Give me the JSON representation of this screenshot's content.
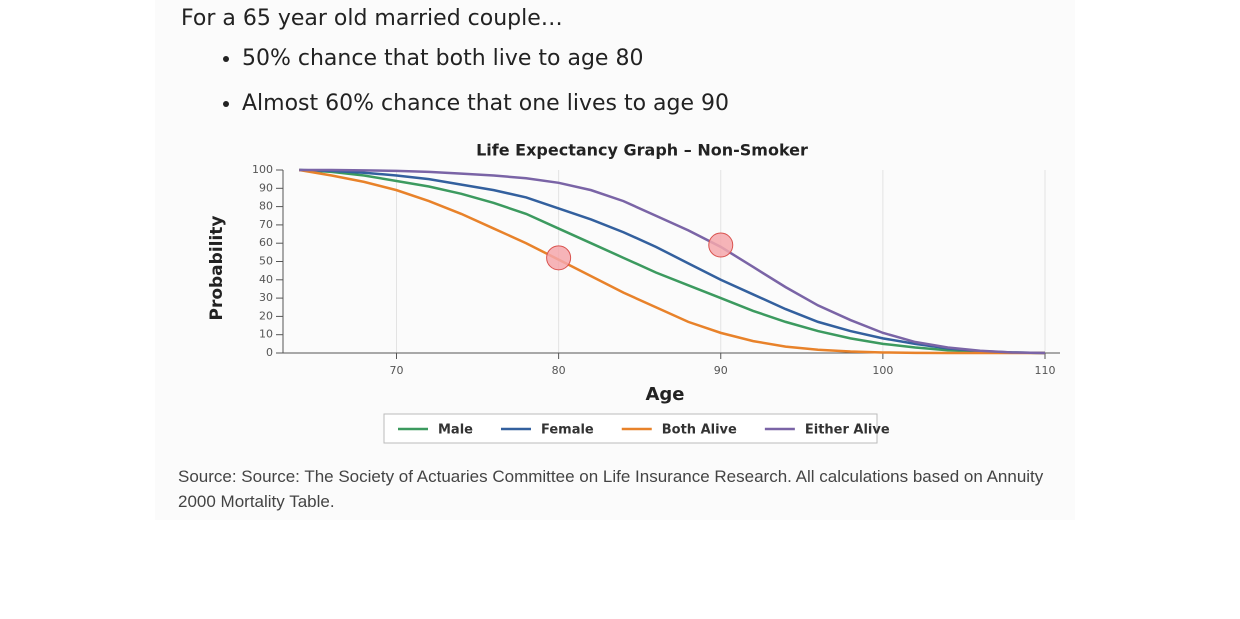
{
  "header": {
    "title": "For a 65 year old married couple…",
    "bullets": [
      "50% chance that both live to age 80",
      "Almost 60% chance that one lives to age 90"
    ]
  },
  "chart_data": {
    "type": "line",
    "title": "Life Expectancy Graph – Non-Smoker",
    "x_label": "Age",
    "y_label": "Probability",
    "x": [
      64,
      66,
      68,
      70,
      72,
      74,
      76,
      78,
      80,
      82,
      84,
      86,
      88,
      90,
      92,
      94,
      96,
      98,
      100,
      102,
      104,
      106,
      108,
      110
    ],
    "series": [
      {
        "name": "Male",
        "color": "#3c9a5f",
        "values": [
          100,
          99,
          97,
          94,
          91,
          87,
          82,
          76,
          68,
          60,
          52,
          44,
          37,
          30,
          23,
          17,
          12,
          8,
          5,
          3,
          1.5,
          0.7,
          0.2,
          0
        ]
      },
      {
        "name": "Female",
        "color": "#33609e",
        "values": [
          100,
          99.5,
          98.5,
          97,
          95,
          92,
          89,
          85,
          79,
          73,
          66,
          58,
          49,
          40,
          32,
          24,
          17,
          12,
          8,
          5,
          2.5,
          1,
          0.3,
          0
        ]
      },
      {
        "name": "Both Alive",
        "color": "#e8822a",
        "values": [
          100,
          97,
          93.5,
          89,
          83,
          76,
          68,
          60,
          51,
          42,
          33,
          25,
          17,
          11,
          6.5,
          3.5,
          1.8,
          0.8,
          0.3,
          0.1,
          0,
          0,
          0,
          0
        ]
      },
      {
        "name": "Either Alive",
        "color": "#7a64a6",
        "values": [
          100,
          100,
          99.8,
          99.5,
          99,
          98,
          97,
          95.5,
          93,
          89,
          83,
          75,
          67,
          58,
          47,
          36,
          26,
          18,
          11,
          6,
          3,
          1.2,
          0.3,
          0
        ]
      }
    ],
    "highlights": [
      {
        "x": 80,
        "y": 52
      },
      {
        "x": 90,
        "y": 59
      }
    ],
    "highlight_color": "#f4a7ab",
    "xlim": [
      63,
      110
    ],
    "ylim": [
      0,
      100
    ],
    "xticks": [
      70,
      80,
      90,
      100,
      110
    ],
    "yticks": [
      0,
      10,
      20,
      30,
      40,
      50,
      60,
      70,
      80,
      90,
      100
    ],
    "grid": "x",
    "legend": "bottom"
  },
  "source": "Source: Source: The Society of Actuaries Committee on Life Insurance Research.  All calculations based on Annuity 2000 Mortality Table."
}
